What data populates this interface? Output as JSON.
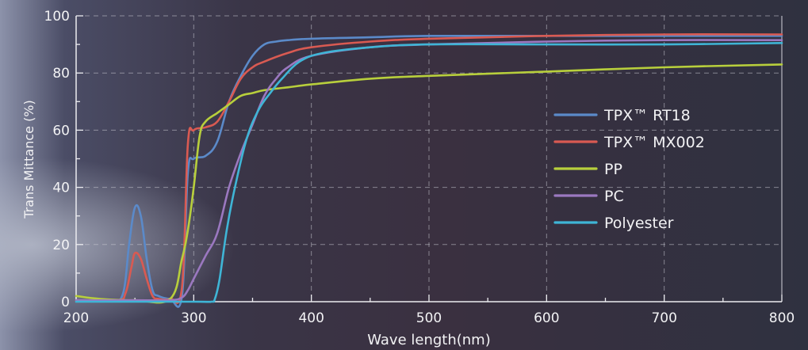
{
  "chart_data": {
    "type": "line",
    "title": "",
    "xlabel": "Wave length(nm)",
    "ylabel": "Trans Mittance (%)",
    "xlim": [
      200,
      800
    ],
    "ylim": [
      0,
      100
    ],
    "xticks": [
      200,
      300,
      400,
      500,
      600,
      700,
      800
    ],
    "yticks": [
      0,
      20,
      40,
      60,
      80,
      100
    ],
    "grid": "dashed",
    "legend_position": "right-center",
    "series": [
      {
        "name": "TPX™ RT18",
        "color": "#5b8ac9",
        "x": [
          200,
          230,
          240,
          245,
          250,
          255,
          260,
          265,
          270,
          280,
          290,
          295,
          300,
          310,
          320,
          330,
          340,
          350,
          360,
          370,
          380,
          400,
          450,
          500,
          600,
          700,
          800
        ],
        "y": [
          0.5,
          0.5,
          3,
          20,
          33,
          30,
          15,
          4,
          2,
          1,
          2,
          45,
          50,
          51,
          56,
          70,
          79,
          86,
          90,
          91,
          91.5,
          92,
          92.5,
          93,
          93,
          93,
          93
        ]
      },
      {
        "name": "TPX™ MX002",
        "color": "#d95a52",
        "x": [
          200,
          235,
          242,
          247,
          250,
          255,
          260,
          265,
          270,
          280,
          290,
          295,
          300,
          310,
          320,
          330,
          340,
          350,
          360,
          380,
          400,
          450,
          500,
          600,
          700,
          800
        ],
        "y": [
          0.5,
          0.5,
          3,
          12,
          17,
          15,
          8,
          2,
          1,
          1,
          5,
          55,
          60,
          61,
          63,
          70,
          78,
          82,
          84,
          87,
          89,
          91,
          92,
          93,
          93.5,
          93.5
        ]
      },
      {
        "name": "PP",
        "color": "#b8cf3c",
        "x": [
          200,
          220,
          250,
          280,
          290,
          295,
          300,
          305,
          310,
          320,
          330,
          340,
          350,
          360,
          380,
          400,
          450,
          500,
          600,
          700,
          800
        ],
        "y": [
          2,
          1,
          0.5,
          1,
          15,
          25,
          40,
          58,
          63,
          66,
          69,
          72,
          73,
          74,
          75,
          76,
          78,
          79,
          80.5,
          82,
          83
        ]
      },
      {
        "name": "PC",
        "color": "#9b78c0",
        "x": [
          200,
          250,
          280,
          290,
          295,
          300,
          310,
          320,
          330,
          340,
          350,
          360,
          370,
          380,
          400,
          450,
          500,
          600,
          700,
          800
        ],
        "y": [
          0.5,
          0.5,
          0.5,
          1.5,
          4,
          8,
          16,
          24,
          40,
          52,
          62,
          72,
          78,
          82,
          86,
          89,
          90,
          91,
          91.5,
          91.5
        ]
      },
      {
        "name": "Polyester",
        "color": "#3fb5d6",
        "x": [
          200,
          300,
          315,
          318,
          322,
          328,
          335,
          345,
          355,
          365,
          375,
          390,
          410,
          450,
          500,
          600,
          700,
          800
        ],
        "y": [
          0,
          0,
          0,
          1,
          8,
          25,
          40,
          57,
          67,
          73,
          78,
          84,
          87,
          89,
          90,
          90,
          90,
          90.5
        ]
      }
    ]
  }
}
